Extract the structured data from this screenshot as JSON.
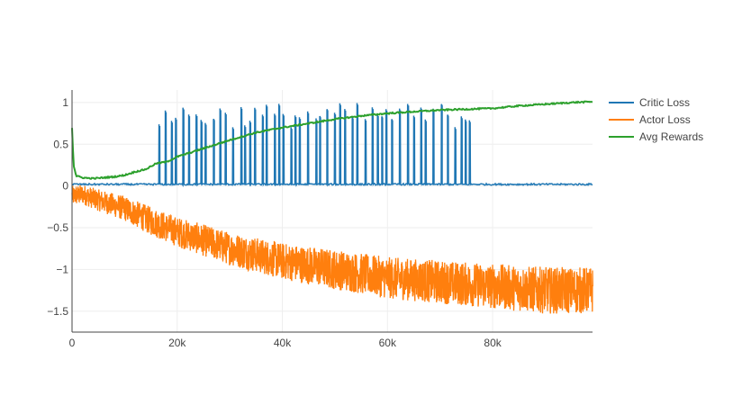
{
  "chart_data": {
    "type": "line",
    "title": "",
    "xlabel": "",
    "ylabel": "",
    "xlim": [
      0,
      99000
    ],
    "ylim": [
      -1.75,
      1.15
    ],
    "grid": true,
    "legend_position": "top-right",
    "x_ticks": [
      {
        "value": 0,
        "label": "0"
      },
      {
        "value": 20000,
        "label": "20k"
      },
      {
        "value": 40000,
        "label": "40k"
      },
      {
        "value": 60000,
        "label": "60k"
      },
      {
        "value": 80000,
        "label": "80k"
      }
    ],
    "y_ticks": [
      {
        "value": 1,
        "label": "1"
      },
      {
        "value": 0.5,
        "label": "0.5"
      },
      {
        "value": 0,
        "label": "0"
      },
      {
        "value": -0.5,
        "label": "−0.5"
      },
      {
        "value": -1,
        "label": "−1"
      },
      {
        "value": -1.5,
        "label": "−1.5"
      }
    ],
    "series": [
      {
        "name": "Critic Loss",
        "color": "#1f77b4",
        "baseline": 0.02,
        "noise": 0.01,
        "spike_range": [
          16500,
          76500
        ],
        "spike_peak": [
          0.7,
          1.0
        ],
        "end_x": 99000
      },
      {
        "name": "Actor Loss",
        "color": "#ff7f0e",
        "x": [
          0,
          2000,
          5000,
          10000,
          15000,
          20000,
          30000,
          40000,
          50000,
          60000,
          70000,
          80000,
          90000,
          99000
        ],
        "center": [
          -0.12,
          -0.1,
          -0.17,
          -0.27,
          -0.42,
          -0.55,
          -0.75,
          -0.9,
          -1.0,
          -1.1,
          -1.15,
          -1.2,
          -1.25,
          -1.25
        ],
        "spread": [
          0.12,
          0.12,
          0.13,
          0.15,
          0.17,
          0.18,
          0.2,
          0.22,
          0.24,
          0.25,
          0.26,
          0.27,
          0.28,
          0.28
        ]
      },
      {
        "name": "Avg Rewards",
        "color": "#2ca02c",
        "x": [
          0,
          300,
          800,
          2000,
          4000,
          6000,
          8000,
          10000,
          12000,
          14000,
          16000,
          18000,
          20000,
          25000,
          30000,
          35000,
          40000,
          45000,
          50000,
          55000,
          60000,
          65000,
          70000,
          75000,
          80000,
          85000,
          90000,
          95000,
          99000
        ],
        "values": [
          0.7,
          0.25,
          0.12,
          0.1,
          0.09,
          0.1,
          0.11,
          0.13,
          0.17,
          0.2,
          0.27,
          0.29,
          0.35,
          0.45,
          0.55,
          0.64,
          0.7,
          0.75,
          0.8,
          0.84,
          0.87,
          0.89,
          0.91,
          0.92,
          0.93,
          0.96,
          0.98,
          1.0,
          1.01
        ]
      }
    ]
  }
}
